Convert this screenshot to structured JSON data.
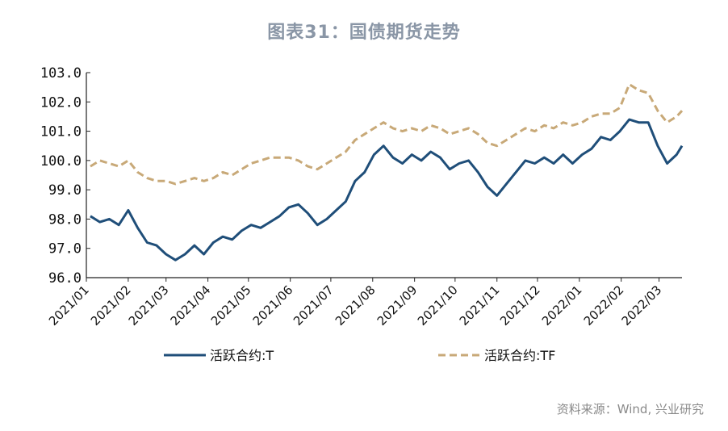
{
  "chart_data": {
    "type": "line",
    "title": "图表31：国债期货走势",
    "source": "资料来源：Wind, 兴业研究",
    "ylim": [
      96.0,
      103.0
    ],
    "y_ticks": [
      "96.0",
      "97.0",
      "98.0",
      "99.0",
      "100.0",
      "101.0",
      "102.0",
      "103.0"
    ],
    "x_ticks": [
      "2021/01",
      "2021/02",
      "2021/03",
      "2021/04",
      "2021/05",
      "2021/06",
      "2021/07",
      "2021/08",
      "2021/09",
      "2021/10",
      "2021/11",
      "2021/12",
      "2022/01",
      "2022/02",
      "2022/03"
    ],
    "x_end": "2022/03/18",
    "legend_position": "bottom",
    "grid": false,
    "series": [
      {
        "name": "活跃合约:T",
        "color": "#1f4e79",
        "style": "solid",
        "points": [
          [
            "2021/01/04",
            98.1
          ],
          [
            "2021/01/11",
            97.9
          ],
          [
            "2021/01/18",
            98.0
          ],
          [
            "2021/01/25",
            97.8
          ],
          [
            "2021/02/01",
            98.3
          ],
          [
            "2021/02/08",
            97.7
          ],
          [
            "2021/02/15",
            97.2
          ],
          [
            "2021/02/22",
            97.1
          ],
          [
            "2021/03/01",
            96.8
          ],
          [
            "2021/03/08",
            96.6
          ],
          [
            "2021/03/15",
            96.8
          ],
          [
            "2021/03/22",
            97.1
          ],
          [
            "2021/03/29",
            96.8
          ],
          [
            "2021/04/05",
            97.2
          ],
          [
            "2021/04/12",
            97.4
          ],
          [
            "2021/04/19",
            97.3
          ],
          [
            "2021/04/26",
            97.6
          ],
          [
            "2021/05/03",
            97.8
          ],
          [
            "2021/05/10",
            97.7
          ],
          [
            "2021/05/17",
            97.9
          ],
          [
            "2021/05/24",
            98.1
          ],
          [
            "2021/05/31",
            98.4
          ],
          [
            "2021/06/07",
            98.5
          ],
          [
            "2021/06/14",
            98.2
          ],
          [
            "2021/06/21",
            97.8
          ],
          [
            "2021/06/28",
            98.0
          ],
          [
            "2021/07/05",
            98.3
          ],
          [
            "2021/07/12",
            98.6
          ],
          [
            "2021/07/19",
            99.3
          ],
          [
            "2021/07/26",
            99.6
          ],
          [
            "2021/08/02",
            100.2
          ],
          [
            "2021/08/09",
            100.5
          ],
          [
            "2021/08/16",
            100.1
          ],
          [
            "2021/08/23",
            99.9
          ],
          [
            "2021/08/30",
            100.2
          ],
          [
            "2021/09/06",
            100.0
          ],
          [
            "2021/09/13",
            100.3
          ],
          [
            "2021/09/20",
            100.1
          ],
          [
            "2021/09/27",
            99.7
          ],
          [
            "2021/10/04",
            99.9
          ],
          [
            "2021/10/11",
            100.0
          ],
          [
            "2021/10/18",
            99.6
          ],
          [
            "2021/10/25",
            99.1
          ],
          [
            "2021/11/01",
            98.8
          ],
          [
            "2021/11/08",
            99.2
          ],
          [
            "2021/11/15",
            99.6
          ],
          [
            "2021/11/22",
            100.0
          ],
          [
            "2021/11/29",
            99.9
          ],
          [
            "2021/12/06",
            100.1
          ],
          [
            "2021/12/13",
            99.9
          ],
          [
            "2021/12/20",
            100.2
          ],
          [
            "2021/12/27",
            99.9
          ],
          [
            "2022/01/03",
            100.2
          ],
          [
            "2022/01/10",
            100.4
          ],
          [
            "2022/01/17",
            100.8
          ],
          [
            "2022/01/24",
            100.7
          ],
          [
            "2022/01/31",
            101.0
          ],
          [
            "2022/02/07",
            101.4
          ],
          [
            "2022/02/14",
            101.3
          ],
          [
            "2022/02/21",
            101.3
          ],
          [
            "2022/02/28",
            100.5
          ],
          [
            "2022/03/07",
            99.9
          ],
          [
            "2022/03/14",
            100.2
          ],
          [
            "2022/03/18",
            100.5
          ]
        ]
      },
      {
        "name": "活跃合约:TF",
        "color": "#c8a978",
        "style": "dashed",
        "points": [
          [
            "2021/01/04",
            99.8
          ],
          [
            "2021/01/11",
            100.0
          ],
          [
            "2021/01/18",
            99.9
          ],
          [
            "2021/01/25",
            99.8
          ],
          [
            "2021/02/01",
            100.0
          ],
          [
            "2021/02/08",
            99.6
          ],
          [
            "2021/02/15",
            99.4
          ],
          [
            "2021/02/22",
            99.3
          ],
          [
            "2021/03/01",
            99.3
          ],
          [
            "2021/03/08",
            99.2
          ],
          [
            "2021/03/15",
            99.3
          ],
          [
            "2021/03/22",
            99.4
          ],
          [
            "2021/03/29",
            99.3
          ],
          [
            "2021/04/05",
            99.4
          ],
          [
            "2021/04/12",
            99.6
          ],
          [
            "2021/04/19",
            99.5
          ],
          [
            "2021/04/26",
            99.7
          ],
          [
            "2021/05/03",
            99.9
          ],
          [
            "2021/05/10",
            100.0
          ],
          [
            "2021/05/17",
            100.1
          ],
          [
            "2021/05/24",
            100.1
          ],
          [
            "2021/05/31",
            100.1
          ],
          [
            "2021/06/07",
            100.0
          ],
          [
            "2021/06/14",
            99.8
          ],
          [
            "2021/06/21",
            99.7
          ],
          [
            "2021/06/28",
            99.9
          ],
          [
            "2021/07/05",
            100.1
          ],
          [
            "2021/07/12",
            100.3
          ],
          [
            "2021/07/19",
            100.7
          ],
          [
            "2021/07/26",
            100.9
          ],
          [
            "2021/08/02",
            101.1
          ],
          [
            "2021/08/09",
            101.3
          ],
          [
            "2021/08/16",
            101.1
          ],
          [
            "2021/08/23",
            101.0
          ],
          [
            "2021/08/30",
            101.1
          ],
          [
            "2021/09/06",
            101.0
          ],
          [
            "2021/09/13",
            101.2
          ],
          [
            "2021/09/20",
            101.1
          ],
          [
            "2021/09/27",
            100.9
          ],
          [
            "2021/10/04",
            101.0
          ],
          [
            "2021/10/11",
            101.1
          ],
          [
            "2021/10/18",
            100.9
          ],
          [
            "2021/10/25",
            100.6
          ],
          [
            "2021/11/01",
            100.5
          ],
          [
            "2021/11/08",
            100.7
          ],
          [
            "2021/11/15",
            100.9
          ],
          [
            "2021/11/22",
            101.1
          ],
          [
            "2021/11/29",
            101.0
          ],
          [
            "2021/12/06",
            101.2
          ],
          [
            "2021/12/13",
            101.1
          ],
          [
            "2021/12/20",
            101.3
          ],
          [
            "2021/12/27",
            101.2
          ],
          [
            "2022/01/03",
            101.3
          ],
          [
            "2022/01/10",
            101.5
          ],
          [
            "2022/01/17",
            101.6
          ],
          [
            "2022/01/24",
            101.6
          ],
          [
            "2022/01/31",
            101.8
          ],
          [
            "2022/02/07",
            102.6
          ],
          [
            "2022/02/14",
            102.4
          ],
          [
            "2022/02/21",
            102.3
          ],
          [
            "2022/02/28",
            101.7
          ],
          [
            "2022/03/07",
            101.3
          ],
          [
            "2022/03/14",
            101.5
          ],
          [
            "2022/03/18",
            101.7
          ]
        ]
      }
    ]
  }
}
